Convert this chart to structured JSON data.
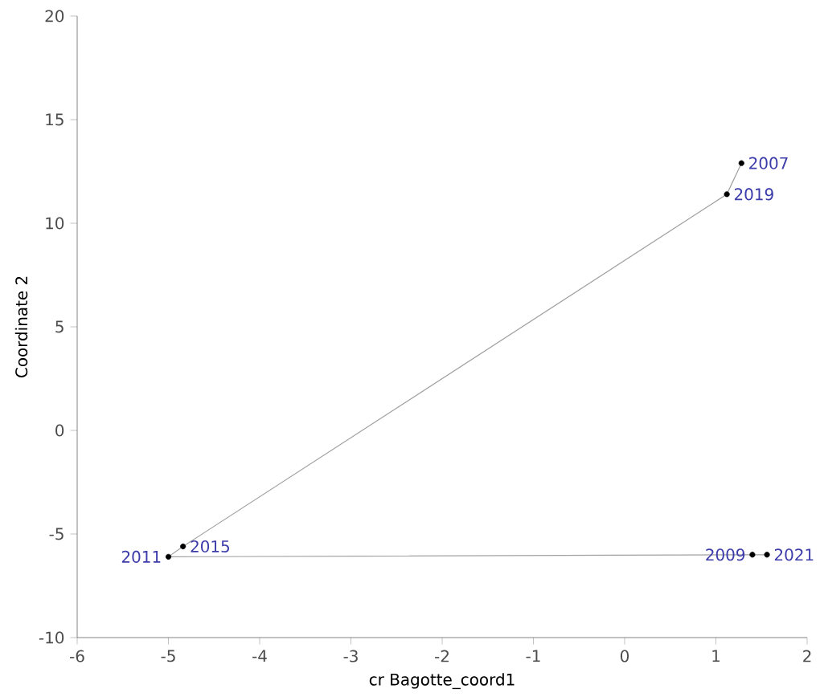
{
  "chart_data": {
    "type": "line",
    "xlabel": "cr Bagotte_coord1",
    "ylabel": "Coordinate 2",
    "xlim": [
      -6,
      2
    ],
    "xticks": [
      -6,
      -5,
      -4,
      -3,
      -2,
      -1,
      0,
      1,
      2
    ],
    "ylim": [
      -10,
      20
    ],
    "yticks": [
      -10,
      -5,
      0,
      5,
      10,
      15,
      20
    ],
    "grid": false,
    "series": [
      {
        "color": "#a0a0a0",
        "marker": "none",
        "x": [
          1.28,
          1.12,
          -4.84,
          -5.0,
          1.4,
          1.56
        ],
        "values": [
          12.9,
          11.4,
          -5.6,
          -6.1,
          -6.0,
          -6.0
        ]
      },
      {
        "type": "scatter",
        "color": "#000000",
        "marker": "circle",
        "x": [
          1.28,
          1.12,
          -4.84,
          -5.0,
          1.4,
          1.56
        ],
        "values": [
          12.9,
          11.4,
          -5.6,
          -6.1,
          -6.0,
          -6.0
        ]
      }
    ],
    "annotations": [
      {
        "text": "2007",
        "x": 1.28,
        "y": 12.9
      },
      {
        "text": "2019",
        "x": 1.12,
        "y": 11.4
      },
      {
        "text": "2015",
        "x": -4.84,
        "y": -5.6
      },
      {
        "text": "2011",
        "x": -5.0,
        "y": -6.1
      },
      {
        "text": "2009",
        "x": 1.4,
        "y": -6.0
      },
      {
        "text": "2021",
        "x": 1.56,
        "y": -6.0
      }
    ]
  }
}
